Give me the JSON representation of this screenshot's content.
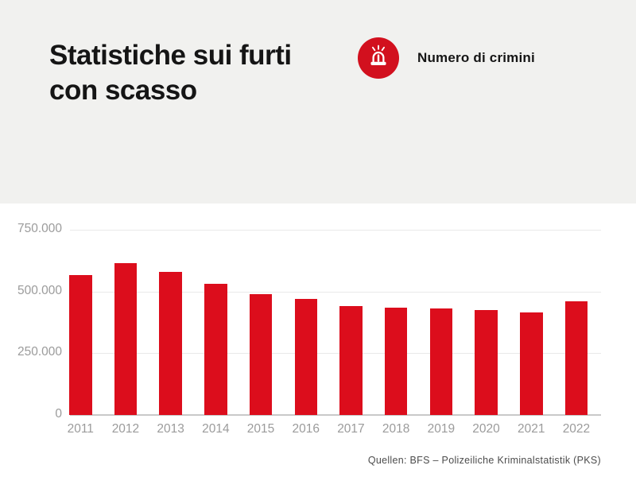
{
  "header": {
    "title_line1": "Statistiche sui furti",
    "title_line2": "con scasso"
  },
  "legend": {
    "icon": "siren-icon",
    "label": "Numero di crimini"
  },
  "footer": {
    "source": "Quellen: BFS – Polizeiliche Kriminalstatistik (PKS)"
  },
  "colors": {
    "accent_red": "#d2101e",
    "bar_red": "#dc0d1c",
    "header_bg": "#f1f1ef",
    "axis_label_gray": "#9b9b9b",
    "source_gray": "#4c4c4c"
  },
  "chart_data": {
    "type": "bar",
    "title": "Statistiche sui furti con scasso",
    "legend_entries": [
      "Numero di crimini"
    ],
    "legend_position": "top-right",
    "grid": true,
    "categories": [
      "2011",
      "2012",
      "2013",
      "2014",
      "2015",
      "2016",
      "2017",
      "2018",
      "2019",
      "2020",
      "2021",
      "2022"
    ],
    "values": [
      565000,
      615000,
      580000,
      530000,
      490000,
      470000,
      440000,
      434000,
      431000,
      424000,
      415000,
      459000
    ],
    "xlabel": "",
    "ylabel": "",
    "ylim": [
      0,
      750000
    ],
    "ytick_labels": [
      "750.000",
      "500.000",
      "250.000",
      "0"
    ],
    "ytick_values": [
      750000,
      500000,
      250000,
      0
    ],
    "bar_color": "#dc0d1c"
  }
}
